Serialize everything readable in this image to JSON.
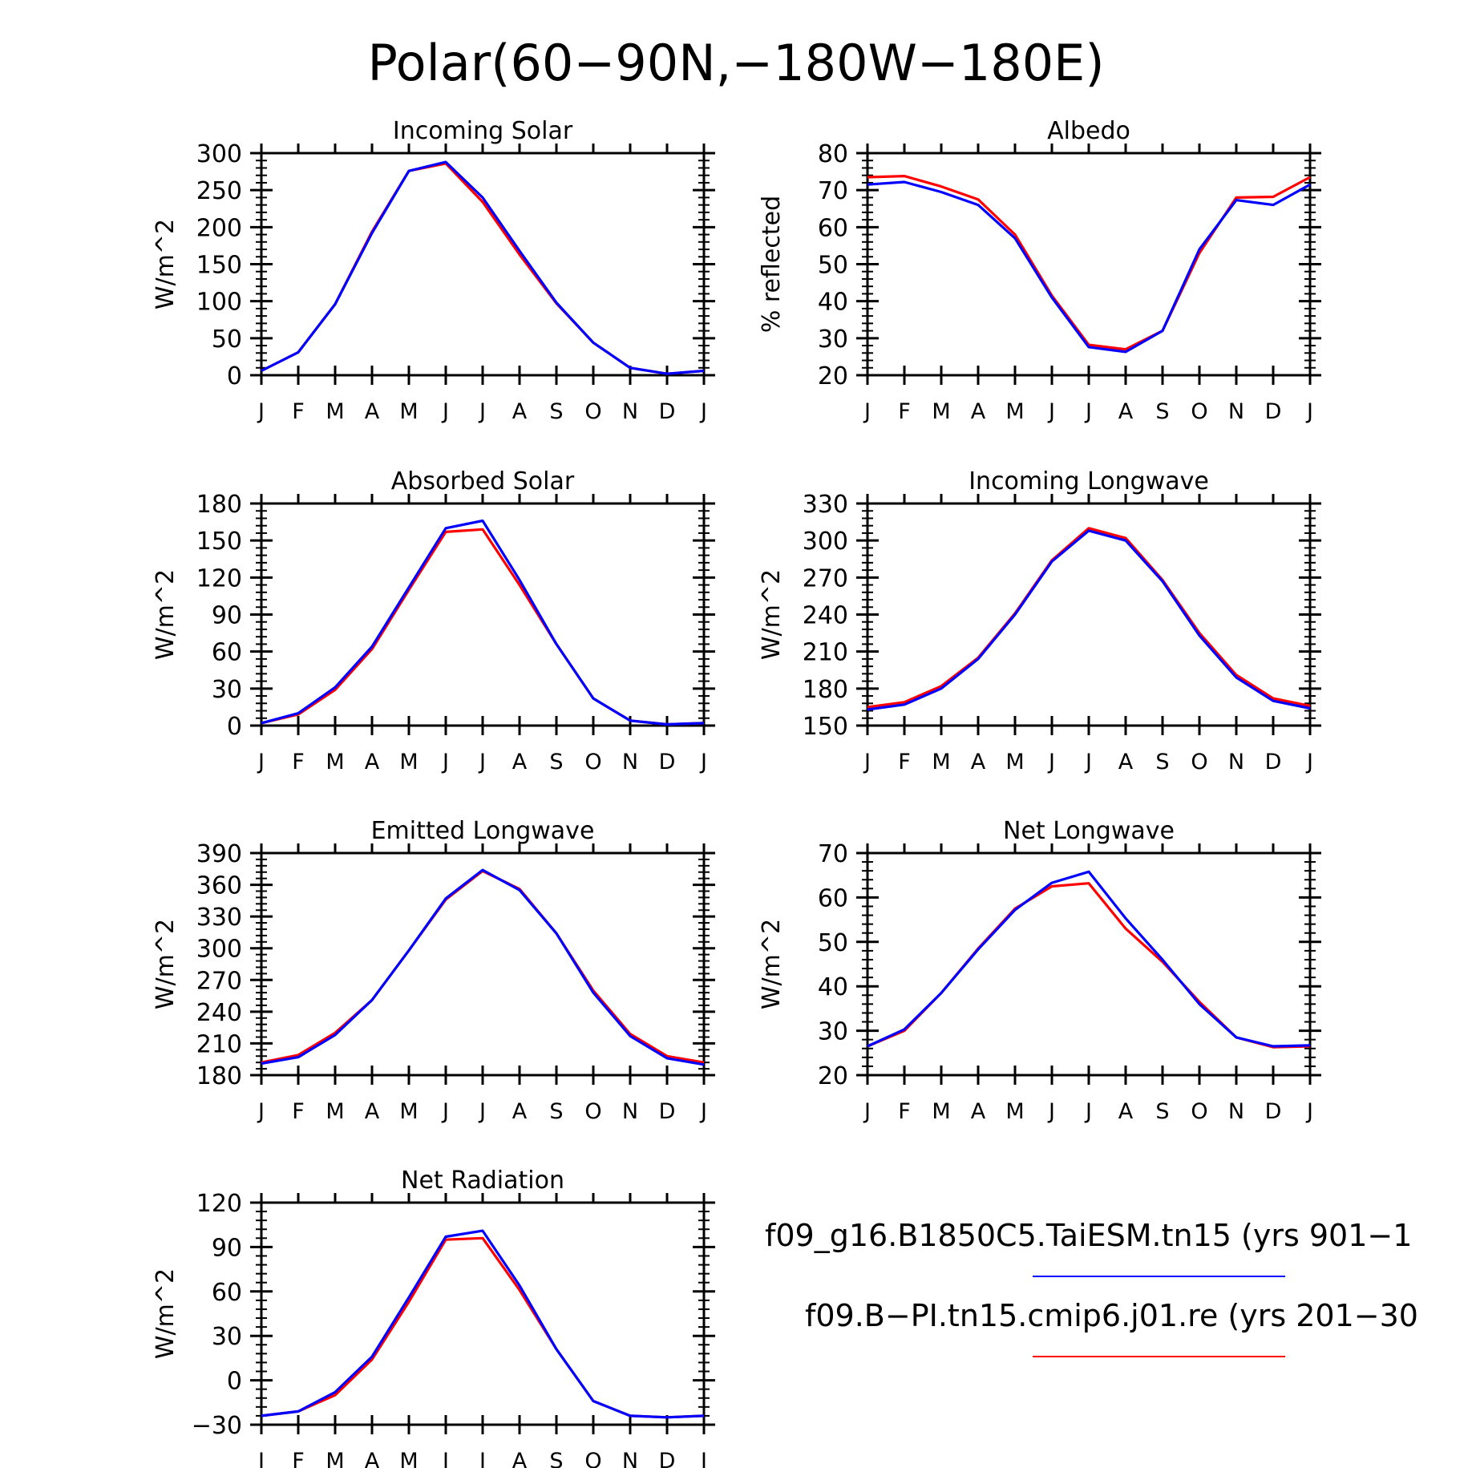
{
  "title": "Polar(60−90N,−180W−180E)",
  "months": [
    "J",
    "F",
    "M",
    "A",
    "M",
    "J",
    "J",
    "A",
    "S",
    "O",
    "N",
    "D",
    "J"
  ],
  "legend": {
    "entries": [
      {
        "label": "f09_g16.B1850C5.TaiESM.tn15 (yrs 901−1",
        "color": "#0000ff"
      },
      {
        "label": "f09.B−PI.tn15.cmip6.j01.re (yrs 201−30",
        "color": "#ff0000"
      }
    ]
  },
  "chart_data": [
    {
      "type": "line",
      "title": "Incoming Solar",
      "ylabel": "W/m^2",
      "ylim": [
        0,
        300
      ],
      "yticks": [
        "0",
        "50",
        "100",
        "150",
        "200",
        "250",
        "300"
      ],
      "categories": [
        "J",
        "F",
        "M",
        "A",
        "M",
        "J",
        "J",
        "A",
        "S",
        "O",
        "N",
        "D",
        "J"
      ],
      "series": [
        {
          "color": "#ff0000",
          "values": [
            6,
            31,
            96,
            194,
            276,
            286,
            234,
            163,
            97,
            44,
            10,
            2,
            6
          ]
        },
        {
          "color": "#0000ff",
          "values": [
            6,
            31,
            96,
            192,
            276,
            288,
            240,
            168,
            98,
            44,
            10,
            2,
            6
          ]
        }
      ]
    },
    {
      "type": "line",
      "title": "Albedo",
      "ylabel": "% reflected",
      "ylim": [
        20,
        80
      ],
      "yticks": [
        "20",
        "30",
        "40",
        "50",
        "60",
        "70",
        "80"
      ],
      "categories": [
        "J",
        "F",
        "M",
        "A",
        "M",
        "J",
        "J",
        "A",
        "S",
        "O",
        "N",
        "D",
        "J"
      ],
      "series": [
        {
          "color": "#ff0000",
          "values": [
            73.5,
            73.8,
            71.0,
            67.5,
            58.0,
            41.5,
            28.2,
            27.0,
            32.0,
            53.0,
            68.0,
            68.2,
            73.5
          ]
        },
        {
          "color": "#0000ff",
          "values": [
            71.5,
            72.2,
            69.5,
            66.0,
            57.0,
            41.0,
            27.6,
            26.3,
            32.0,
            54.0,
            67.3,
            66.0,
            71.5
          ]
        }
      ]
    },
    {
      "type": "line",
      "title": "Absorbed Solar",
      "ylabel": "W/m^2",
      "ylim": [
        0,
        180
      ],
      "yticks": [
        "0",
        "30",
        "60",
        "90",
        "120",
        "150",
        "180"
      ],
      "categories": [
        "J",
        "F",
        "M",
        "A",
        "M",
        "J",
        "J",
        "A",
        "S",
        "O",
        "N",
        "D",
        "J"
      ],
      "series": [
        {
          "color": "#ff0000",
          "values": [
            2,
            9,
            29,
            62,
            110,
            157,
            159,
            114,
            66,
            22,
            4,
            1,
            2
          ]
        },
        {
          "color": "#0000ff",
          "values": [
            2,
            10,
            31,
            64,
            112,
            160,
            166,
            118,
            66,
            22,
            4,
            1,
            2
          ]
        }
      ]
    },
    {
      "type": "line",
      "title": "Incoming Longwave",
      "ylabel": "W/m^2",
      "ylim": [
        150,
        330
      ],
      "yticks": [
        "150",
        "180",
        "210",
        "240",
        "270",
        "300",
        "330"
      ],
      "categories": [
        "J",
        "F",
        "M",
        "A",
        "M",
        "J",
        "J",
        "A",
        "S",
        "O",
        "N",
        "D",
        "J"
      ],
      "series": [
        {
          "color": "#ff0000",
          "values": [
            165,
            169,
            182,
            205,
            241,
            284,
            310,
            302,
            268,
            225,
            191,
            172,
            166
          ]
        },
        {
          "color": "#0000ff",
          "values": [
            163,
            167,
            180,
            204,
            240,
            283,
            308,
            300,
            267,
            223,
            189,
            170,
            164
          ]
        }
      ]
    },
    {
      "type": "line",
      "title": "Emitted Longwave",
      "ylabel": "W/m^2",
      "ylim": [
        180,
        390
      ],
      "yticks": [
        "180",
        "210",
        "240",
        "270",
        "300",
        "330",
        "360",
        "390"
      ],
      "categories": [
        "J",
        "F",
        "M",
        "A",
        "M",
        "J",
        "J",
        "A",
        "S",
        "O",
        "N",
        "D",
        "J"
      ],
      "series": [
        {
          "color": "#ff0000",
          "values": [
            192,
            199,
            220,
            251,
            298,
            346,
            373,
            356,
            314,
            260,
            219,
            198,
            192
          ]
        },
        {
          "color": "#0000ff",
          "values": [
            191,
            197,
            218,
            251,
            298,
            347,
            374,
            355,
            314,
            258,
            217,
            196,
            190
          ]
        }
      ]
    },
    {
      "type": "line",
      "title": "Net Longwave",
      "ylabel": "W/m^2",
      "ylim": [
        20,
        70
      ],
      "yticks": [
        "20",
        "30",
        "40",
        "50",
        "60",
        "70"
      ],
      "categories": [
        "J",
        "F",
        "M",
        "A",
        "M",
        "J",
        "J",
        "A",
        "S",
        "O",
        "N",
        "D",
        "J"
      ],
      "series": [
        {
          "color": "#ff0000",
          "values": [
            26.5,
            30,
            38.5,
            48.5,
            57.5,
            62.5,
            63.2,
            53,
            45.5,
            36.5,
            28.5,
            26.3,
            26.5
          ]
        },
        {
          "color": "#0000ff",
          "values": [
            26.5,
            30.3,
            38.5,
            48.3,
            57.2,
            63.3,
            65.8,
            55.3,
            46,
            36,
            28.5,
            26.5,
            26.7
          ]
        }
      ]
    },
    {
      "type": "line",
      "title": "Net Radiation",
      "ylabel": "W/m^2",
      "ylim": [
        -30,
        120
      ],
      "yticks": [
        "−30",
        "0",
        "30",
        "60",
        "90",
        "120"
      ],
      "categories": [
        "J",
        "F",
        "M",
        "A",
        "M",
        "J",
        "J",
        "A",
        "S",
        "O",
        "N",
        "D",
        "J"
      ],
      "series": [
        {
          "color": "#ff0000",
          "values": [
            -24,
            -21,
            -10,
            14,
            53,
            95,
            96,
            61,
            21,
            -14,
            -24,
            -25,
            -24
          ]
        },
        {
          "color": "#0000ff",
          "values": [
            -24,
            -21,
            -8,
            16,
            56,
            97,
            101,
            64,
            21,
            -14,
            -24,
            -25,
            -24
          ]
        }
      ]
    }
  ]
}
